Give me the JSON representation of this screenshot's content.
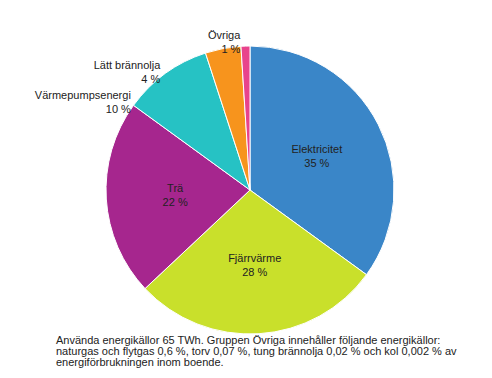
{
  "chart_data": {
    "type": "pie",
    "categories": [
      "Elektricitet",
      "Fjärrvärme",
      "Trä",
      "Värmepumpsenergi",
      "Lätt brännolja",
      "Övriga"
    ],
    "values": [
      35,
      28,
      22,
      10,
      4,
      1
    ],
    "value_labels": [
      "35 %",
      "28 %",
      "22 %",
      "10 %",
      "4 %",
      "1 %"
    ],
    "colors": [
      "#3a86c8",
      "#c9e02b",
      "#a6268e",
      "#26c2c4",
      "#f7941d",
      "#e8438c"
    ],
    "data_labels": true,
    "annotations": [
      "Använda energikällor 65 TWh. Gruppen Övriga innehåller följande energikällor: naturgas och flytgas 0,6 %, torv 0,07 %, tung brännolja 0,02 % och kol 0,002 % av energiförbrukningen inom boende."
    ]
  }
}
